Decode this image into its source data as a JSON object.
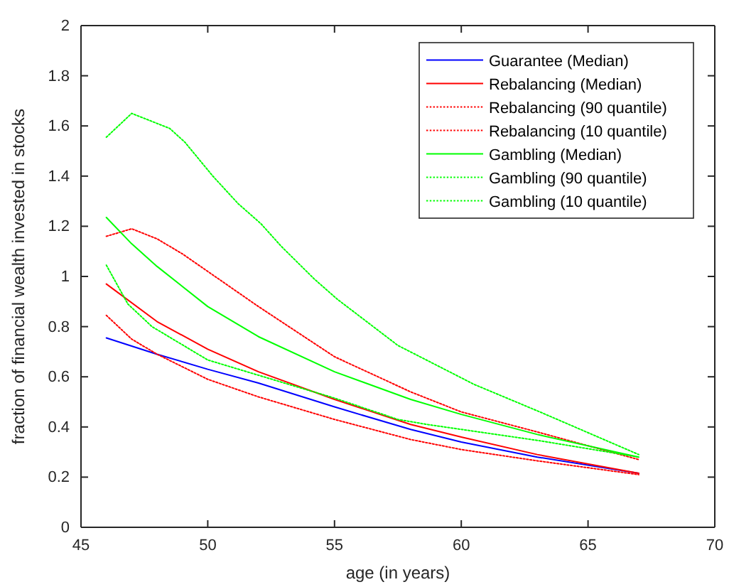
{
  "chart_data": {
    "type": "line",
    "xlabel": "age (in years)",
    "ylabel": "fraction of financial wealth invested in stocks",
    "xlim": [
      45,
      70
    ],
    "xticks": [
      45,
      50,
      55,
      60,
      65,
      70
    ],
    "ylim": [
      0,
      2
    ],
    "yticks": [
      0,
      0.2,
      0.4,
      0.6,
      0.8,
      1,
      1.2,
      1.4,
      1.6,
      1.8,
      2
    ],
    "grid": false,
    "legend": "top right",
    "marker": "none",
    "series": [
      {
        "name": "Guarantee (Median)",
        "color": "#0000ff",
        "line_style": "solid",
        "x": [
          46,
          48,
          50,
          52,
          55,
          58,
          60,
          63,
          67
        ],
        "values": [
          0.755,
          0.69,
          0.63,
          0.575,
          0.48,
          0.39,
          0.34,
          0.28,
          0.215
        ]
      },
      {
        "name": "Rebalancing (Median)",
        "color": "#ff0000",
        "line_style": "solid",
        "x": [
          46,
          48,
          50,
          52,
          55,
          58,
          60,
          63,
          67
        ],
        "values": [
          0.97,
          0.82,
          0.71,
          0.62,
          0.51,
          0.41,
          0.36,
          0.29,
          0.215
        ]
      },
      {
        "name": "Rebalancing (90 quantile)",
        "color": "#ff0000",
        "line_style": "dotted",
        "x": [
          46,
          47,
          48,
          49,
          50,
          52,
          55,
          58,
          60,
          63,
          67
        ],
        "values": [
          1.16,
          1.19,
          1.15,
          1.09,
          1.02,
          0.88,
          0.68,
          0.54,
          0.46,
          0.38,
          0.27
        ]
      },
      {
        "name": "Rebalancing (10 quantile)",
        "color": "#ff0000",
        "line_style": "dotted",
        "x": [
          46,
          47,
          48,
          50,
          52,
          55,
          58,
          60,
          63,
          67
        ],
        "values": [
          0.845,
          0.75,
          0.69,
          0.59,
          0.52,
          0.43,
          0.35,
          0.31,
          0.265,
          0.21
        ]
      },
      {
        "name": "Gambling (Median)",
        "color": "#00ff00",
        "line_style": "solid",
        "x": [
          46,
          47,
          48,
          50,
          52,
          55,
          58,
          60,
          63,
          67
        ],
        "values": [
          1.235,
          1.13,
          1.04,
          0.88,
          0.76,
          0.62,
          0.51,
          0.45,
          0.37,
          0.28
        ]
      },
      {
        "name": "Gambling (90 quantile)",
        "color": "#00ff00",
        "line_style": "dotted",
        "x": [
          46,
          47,
          48.5,
          49.1,
          50.2,
          51.2,
          52.1,
          52.9,
          54.2,
          55.1,
          57.5,
          60.5,
          63.1,
          67
        ],
        "values": [
          1.555,
          1.65,
          1.59,
          1.535,
          1.4,
          1.29,
          1.21,
          1.12,
          0.99,
          0.91,
          0.725,
          0.57,
          0.46,
          0.29
        ]
      },
      {
        "name": "Gambling (10 quantile)",
        "color": "#00ff00",
        "line_style": "dotted",
        "x": [
          46,
          46.85,
          47.8,
          50,
          55,
          57.5,
          58.65,
          63.1,
          67
        ],
        "values": [
          1.045,
          0.89,
          0.8,
          0.667,
          0.515,
          0.43,
          0.41,
          0.345,
          0.28
        ]
      }
    ]
  }
}
